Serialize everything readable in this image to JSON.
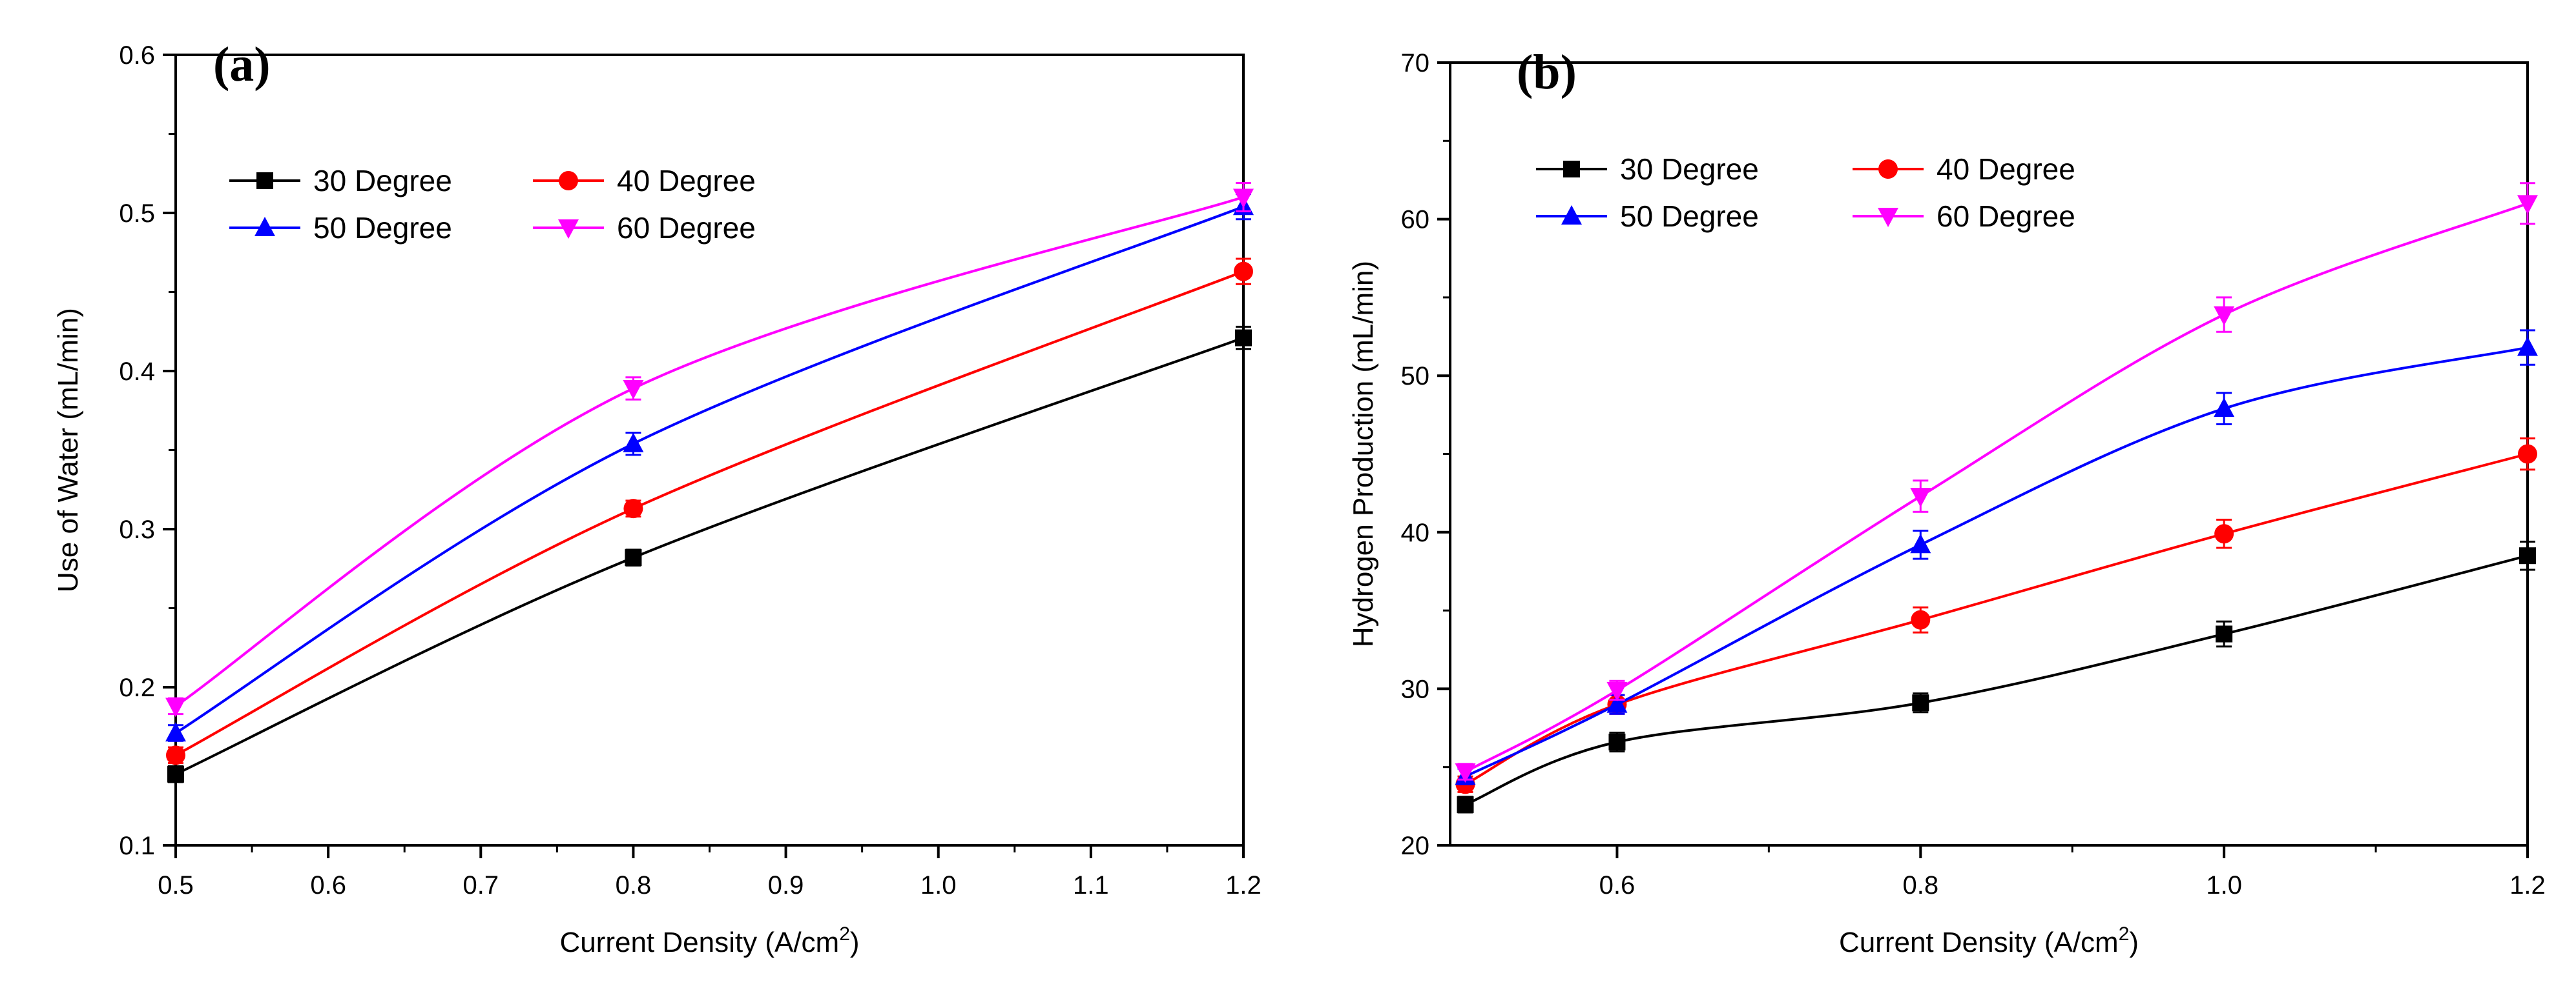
{
  "chart_data": [
    {
      "type": "line",
      "panel_label": "(a)",
      "title": "",
      "xlabel": "Current Density (A/cm",
      "xlabel_sup": "2",
      "xlabel_close": ")",
      "ylabel": "Use of Water (mL/min)",
      "xlim": [
        0.5,
        1.2
      ],
      "ylim": [
        0.1,
        0.6
      ],
      "xticks": [
        "0.5",
        "0.6",
        "0.7",
        "0.8",
        "0.9",
        "1.0",
        "1.1",
        "1.2"
      ],
      "yticks": [
        "0.1",
        "0.2",
        "0.3",
        "0.4",
        "0.5",
        "0.6"
      ],
      "grid": false,
      "legend_position": "top-left",
      "x": [
        0.5,
        0.8,
        1.2
      ],
      "series": [
        {
          "name": "30 Degree",
          "color": "#000000",
          "marker": "square",
          "values": [
            0.145,
            0.282,
            0.421
          ],
          "errors": [
            0.005,
            0.005,
            0.007
          ]
        },
        {
          "name": "40 Degree",
          "color": "#ff0000",
          "marker": "circle",
          "values": [
            0.157,
            0.313,
            0.463
          ],
          "errors": [
            0.005,
            0.005,
            0.008
          ]
        },
        {
          "name": "50 Degree",
          "color": "#0000ff",
          "marker": "triangle-up",
          "values": [
            0.171,
            0.354,
            0.504
          ],
          "errors": [
            0.005,
            0.007,
            0.008
          ]
        },
        {
          "name": "60 Degree",
          "color": "#ff00ff",
          "marker": "triangle-down",
          "values": [
            0.188,
            0.389,
            0.51
          ],
          "errors": [
            0.005,
            0.007,
            0.009
          ]
        }
      ]
    },
    {
      "type": "line",
      "panel_label": "(b)",
      "title": "",
      "xlabel": "Current Density (A/cm",
      "xlabel_sup": "2",
      "xlabel_close": ")",
      "ylabel": "Hydrogen Production (mL/min)",
      "xlim": [
        0.49,
        1.2
      ],
      "ylim": [
        20,
        70
      ],
      "xticks": [
        "0.6",
        "0.8",
        "1.0",
        "1.2"
      ],
      "yticks": [
        "20",
        "30",
        "40",
        "50",
        "60",
        "70"
      ],
      "grid": false,
      "legend_position": "top-left",
      "x": [
        0.5,
        0.6,
        0.8,
        1.0,
        1.2
      ],
      "series": [
        {
          "name": "30 Degree",
          "color": "#000000",
          "marker": "square",
          "values": [
            22.6,
            26.6,
            29.1,
            33.5,
            38.5
          ],
          "errors": [
            0.5,
            0.6,
            0.6,
            0.8,
            0.9
          ]
        },
        {
          "name": "40 Degree",
          "color": "#ff0000",
          "marker": "circle",
          "values": [
            23.9,
            29.0,
            34.4,
            39.9,
            45.0
          ],
          "errors": [
            0.5,
            0.6,
            0.8,
            0.9,
            1.0
          ]
        },
        {
          "name": "50 Degree",
          "color": "#0000ff",
          "marker": "triangle-up",
          "values": [
            24.4,
            29.0,
            39.2,
            47.9,
            51.8
          ],
          "errors": [
            0.5,
            0.6,
            0.9,
            1.0,
            1.1
          ]
        },
        {
          "name": "60 Degree",
          "color": "#ff00ff",
          "marker": "triangle-down",
          "values": [
            24.7,
            29.9,
            42.3,
            53.9,
            61.0
          ],
          "errors": [
            0.5,
            0.6,
            1.0,
            1.1,
            1.3
          ]
        }
      ]
    }
  ]
}
